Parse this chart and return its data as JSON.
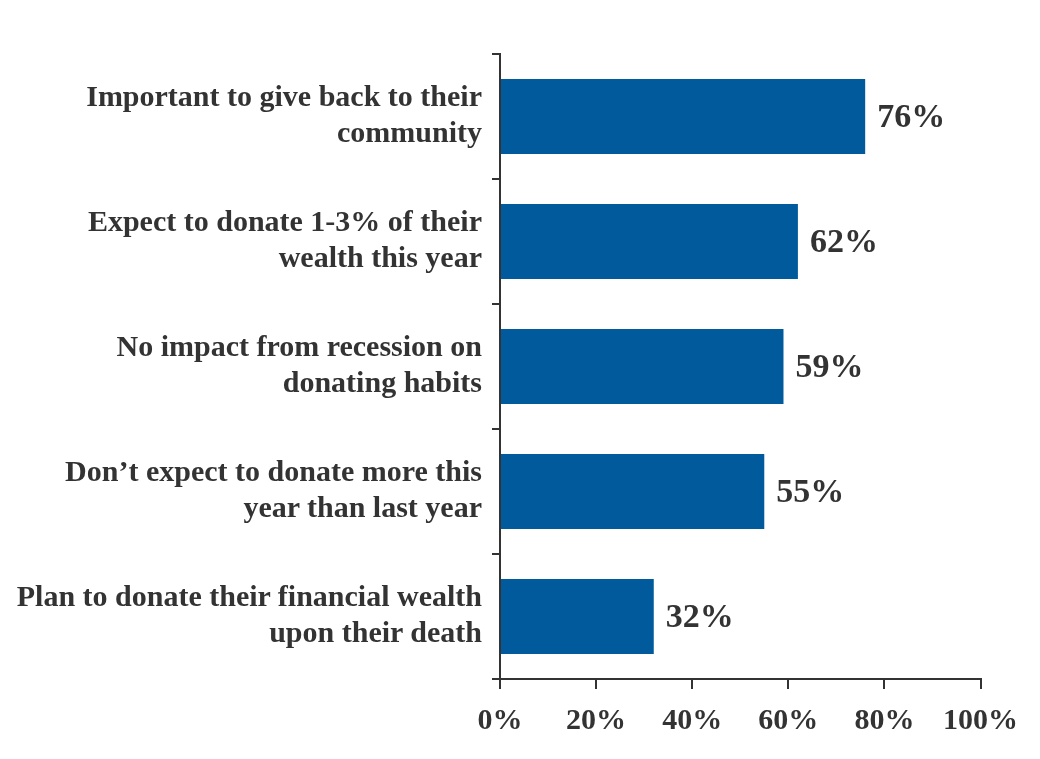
{
  "chart_data": {
    "type": "bar",
    "orientation": "horizontal",
    "categories": [
      "Important to give back to their community",
      "Expect to donate 1-3% of their wealth this year",
      "No impact from recession on donating habits",
      "Don’t expect to donate more this year than last year",
      "Plan to donate their financial wealth upon their death"
    ],
    "values": [
      76,
      62,
      59,
      55,
      32
    ],
    "color": "#005a9c",
    "value_labels": [
      "76%",
      "62%",
      "59%",
      "55%",
      "32%"
    ],
    "xlim": [
      0,
      100
    ],
    "xticks": [
      {
        "value": 0,
        "label": "0%"
      },
      {
        "value": 20,
        "label": "20%"
      },
      {
        "value": 40,
        "label": "40%"
      },
      {
        "value": 60,
        "label": "60%"
      },
      {
        "value": 80,
        "label": "80%"
      },
      {
        "value": 100,
        "label": "100%"
      }
    ],
    "grid": false,
    "legend": false
  }
}
